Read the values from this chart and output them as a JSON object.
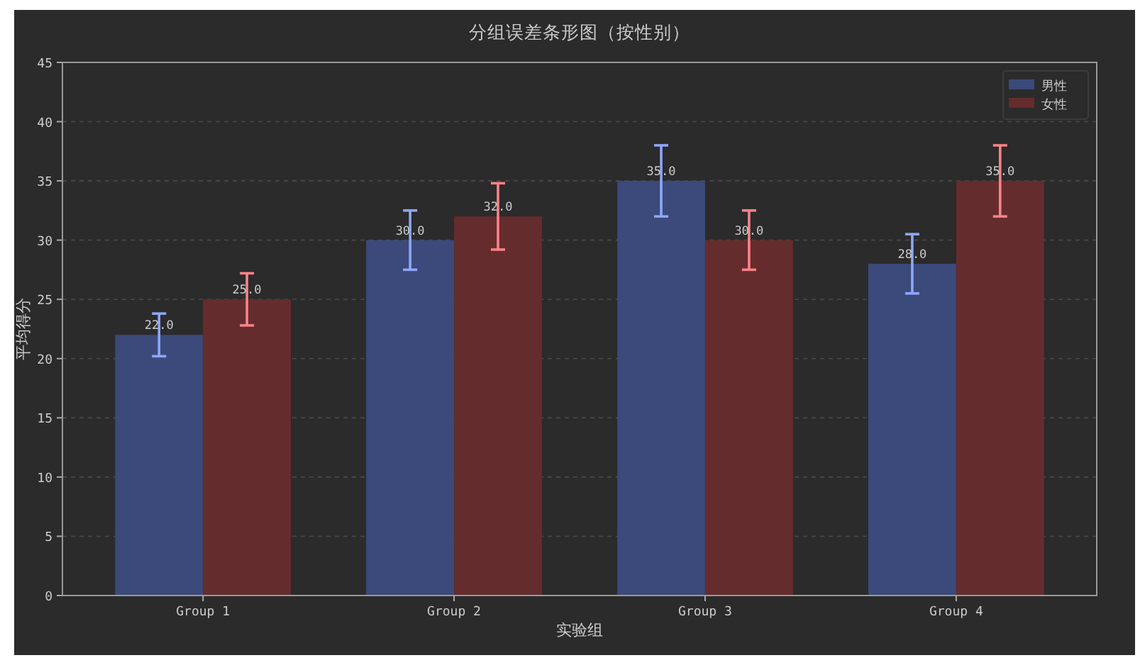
{
  "chart_data": {
    "type": "bar",
    "title": "分组误差条形图（按性别）",
    "xlabel": "实验组",
    "ylabel": "平均得分",
    "categories": [
      "Group 1",
      "Group 2",
      "Group 3",
      "Group 4"
    ],
    "series": [
      {
        "name": "男性",
        "color": "#3b4a7a",
        "values": [
          22,
          30,
          35,
          28
        ],
        "errors": [
          1.8,
          2.5,
          3.0,
          2.5
        ],
        "value_labels": [
          "22.0",
          "30.0",
          "35.0",
          "28.0"
        ]
      },
      {
        "name": "女性",
        "color": "#652c2e",
        "values": [
          25,
          32,
          30,
          35
        ],
        "errors": [
          2.2,
          2.8,
          2.5,
          3.0
        ],
        "value_labels": [
          "25.0",
          "32.0",
          "30.0",
          "35.0"
        ]
      }
    ],
    "ylim": [
      0,
      45
    ],
    "yticks": [
      0,
      5,
      10,
      15,
      20,
      25,
      30,
      35,
      40,
      45
    ],
    "grid": "y",
    "legend": "top right"
  }
}
